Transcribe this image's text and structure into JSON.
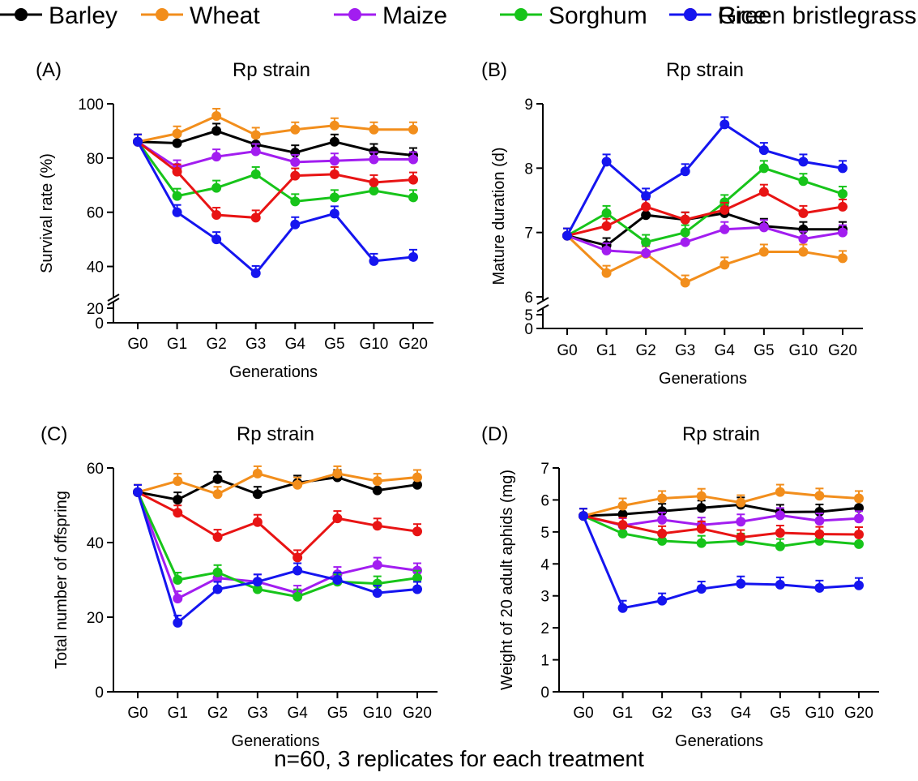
{
  "legend": {
    "items": [
      {
        "label": "Barley",
        "color": "#000000"
      },
      {
        "label": "Wheat",
        "color": "#f28e1c"
      },
      {
        "label": "Maize",
        "color": "#a21df0"
      },
      {
        "label": "Sorghum",
        "color": "#17c41a"
      },
      {
        "label": "Rice",
        "color": "#e81414"
      },
      {
        "label": "Green bristlegrass",
        "color": "#1515ef"
      }
    ]
  },
  "footnote": "n=60, 3 replicates for each treatment",
  "chart_data": [
    {
      "panel": "(A)",
      "type": "line",
      "title": "Rp strain",
      "xlabel": "Generations",
      "ylabel": "Survival rate (%)",
      "categories": [
        "G0",
        "G1",
        "G2",
        "G3",
        "G4",
        "G5",
        "G10",
        "G20"
      ],
      "y_axis_break": true,
      "lower_ticks": [
        "0",
        "20"
      ],
      "ylim": [
        30,
        100
      ],
      "yticks": [
        40,
        60,
        80,
        100
      ],
      "series": [
        {
          "name": "Barley",
          "values": [
            86,
            85.5,
            90,
            85,
            82,
            86,
            82.5,
            81
          ]
        },
        {
          "name": "Wheat",
          "values": [
            86,
            89,
            95.5,
            88.5,
            90.5,
            92,
            90.5,
            90.5
          ]
        },
        {
          "name": "Maize",
          "values": [
            86,
            76.5,
            80.5,
            82.5,
            78.5,
            79,
            79.5,
            79.5
          ]
        },
        {
          "name": "Sorghum",
          "values": [
            86,
            66,
            69,
            74,
            64,
            65.5,
            68,
            65.5
          ]
        },
        {
          "name": "Rice",
          "values": [
            86,
            75,
            59,
            58,
            73.5,
            74,
            71,
            72
          ]
        },
        {
          "name": "Green bristlegrass",
          "values": [
            86,
            60,
            50,
            37.5,
            55.5,
            59.5,
            42,
            43.5
          ]
        }
      ]
    },
    {
      "panel": "(B)",
      "type": "line",
      "title": "Rp strain",
      "xlabel": "Generations",
      "ylabel": "Mature duration (d)",
      "categories": [
        "G0",
        "G1",
        "G2",
        "G3",
        "G4",
        "G5",
        "G10",
        "G20"
      ],
      "y_axis_break": true,
      "lower_ticks": [
        "0",
        "5"
      ],
      "ylim": [
        6,
        9
      ],
      "yticks": [
        6,
        7,
        8,
        9
      ],
      "series": [
        {
          "name": "Barley",
          "values": [
            6.95,
            6.8,
            7.27,
            7.2,
            7.3,
            7.1,
            7.05,
            7.05
          ]
        },
        {
          "name": "Wheat",
          "values": [
            6.95,
            6.37,
            6.67,
            6.22,
            6.5,
            6.7,
            6.7,
            6.6
          ]
        },
        {
          "name": "Maize",
          "values": [
            6.95,
            6.72,
            6.68,
            6.85,
            7.05,
            7.08,
            6.9,
            7.0
          ]
        },
        {
          "name": "Sorghum",
          "values": [
            6.95,
            7.3,
            6.85,
            7.0,
            7.47,
            8.0,
            7.8,
            7.6
          ]
        },
        {
          "name": "Rice",
          "values": [
            6.95,
            7.1,
            7.4,
            7.2,
            7.35,
            7.63,
            7.3,
            7.4
          ]
        },
        {
          "name": "Green bristlegrass",
          "values": [
            6.95,
            8.1,
            7.57,
            7.95,
            8.68,
            8.28,
            8.1,
            8.0
          ]
        }
      ]
    },
    {
      "panel": "(C)",
      "type": "line",
      "title": "Rp strain",
      "xlabel": "Generations",
      "ylabel": "Total number of offspring",
      "categories": [
        "G0",
        "G1",
        "G2",
        "G3",
        "G4",
        "G5",
        "G10",
        "G20"
      ],
      "ylim": [
        0,
        60
      ],
      "yticks": [
        0,
        20,
        40,
        60
      ],
      "series": [
        {
          "name": "Barley",
          "values": [
            53.5,
            51.5,
            57,
            53,
            56,
            57.5,
            54,
            55.5
          ]
        },
        {
          "name": "Wheat",
          "values": [
            53.5,
            56.5,
            53,
            58.5,
            55.5,
            58.5,
            56.5,
            57.5
          ]
        },
        {
          "name": "Maize",
          "values": [
            53.5,
            25,
            30.5,
            29.5,
            26.5,
            31.5,
            34,
            32.5
          ]
        },
        {
          "name": "Sorghum",
          "values": [
            53.5,
            30,
            32,
            27.5,
            25.5,
            29.5,
            29,
            30.5
          ]
        },
        {
          "name": "Rice",
          "values": [
            53.5,
            48,
            41.5,
            45.5,
            36,
            46.5,
            44.5,
            43
          ]
        },
        {
          "name": "Green bristlegrass",
          "values": [
            53.5,
            18.5,
            27.5,
            29.5,
            32.5,
            30,
            26.5,
            27.5
          ]
        }
      ]
    },
    {
      "panel": "(D)",
      "type": "line",
      "title": "Rp strain",
      "xlabel": "Generations",
      "ylabel": "Weight of 20 adult aphids (mg)",
      "categories": [
        "G0",
        "G1",
        "G2",
        "G3",
        "G4",
        "G5",
        "G10",
        "G20"
      ],
      "ylim": [
        0,
        7
      ],
      "yticks": [
        0,
        1,
        2,
        3,
        4,
        5,
        6,
        7
      ],
      "series": [
        {
          "name": "Barley",
          "values": [
            5.5,
            5.55,
            5.65,
            5.75,
            5.85,
            5.62,
            5.63,
            5.75
          ]
        },
        {
          "name": "Wheat",
          "values": [
            5.5,
            5.82,
            6.05,
            6.12,
            5.92,
            6.25,
            6.13,
            6.05
          ]
        },
        {
          "name": "Maize",
          "values": [
            5.5,
            5.2,
            5.38,
            5.22,
            5.32,
            5.52,
            5.35,
            5.42
          ]
        },
        {
          "name": "Sorghum",
          "values": [
            5.5,
            4.95,
            4.72,
            4.65,
            4.72,
            4.55,
            4.72,
            4.62
          ]
        },
        {
          "name": "Rice",
          "values": [
            5.5,
            5.22,
            4.95,
            5.1,
            4.83,
            4.97,
            4.93,
            4.92
          ]
        },
        {
          "name": "Green bristlegrass",
          "values": [
            5.5,
            2.62,
            2.85,
            3.22,
            3.38,
            3.35,
            3.25,
            3.33
          ]
        }
      ]
    }
  ]
}
